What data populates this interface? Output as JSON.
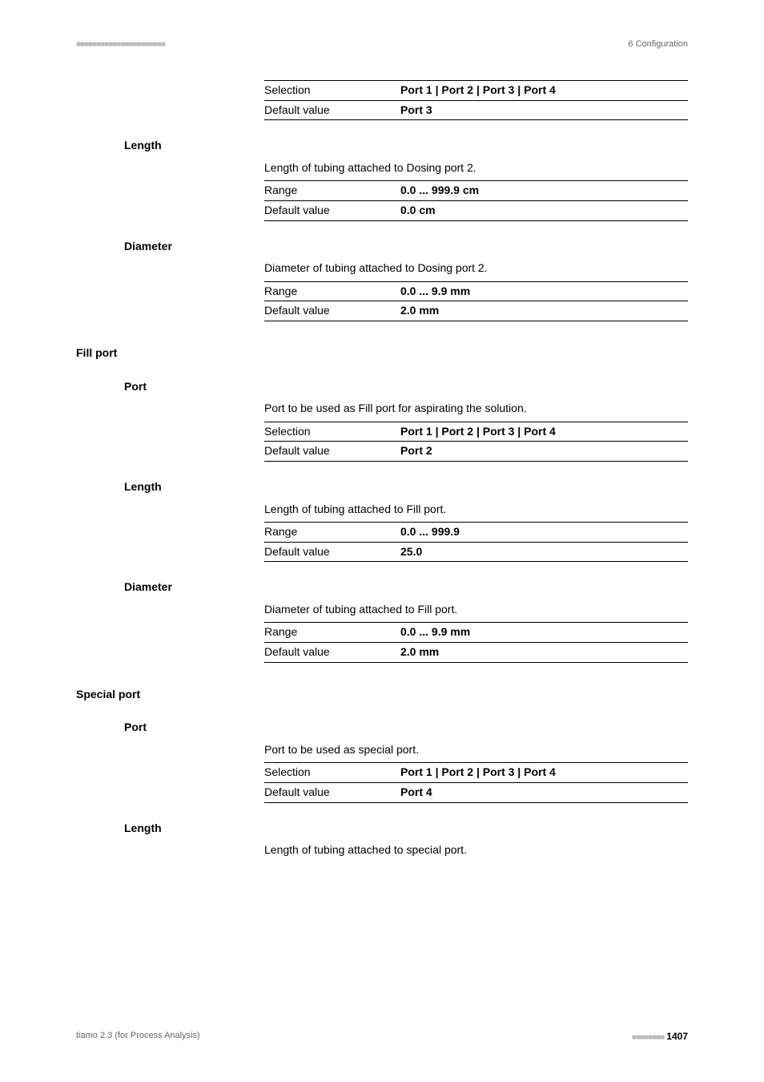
{
  "header": {
    "dots": "■■■■■■■■■■■■■■■■■■■■■■",
    "right": "6 Configuration"
  },
  "sections": [
    {
      "label": null,
      "indentDesc": null,
      "rows": [
        {
          "key": "Selection",
          "val": "Port 1 | Port 2 | Port 3 | Port 4"
        },
        {
          "key": "Default value",
          "val": "Port 3"
        }
      ]
    },
    {
      "label": "Length",
      "indentDesc": "Length of tubing attached to Dosing port 2.",
      "rows": [
        {
          "key": "Range",
          "val": "0.0 ... 999.9 cm"
        },
        {
          "key": "Default value",
          "val": "0.0 cm"
        }
      ]
    },
    {
      "label": "Diameter",
      "indentDesc": "Diameter of tubing attached to Dosing port 2.",
      "rows": [
        {
          "key": "Range",
          "val": "0.0 ... 9.9 mm"
        },
        {
          "key": "Default value",
          "val": "2.0 mm"
        }
      ]
    },
    {
      "head": "Fill port"
    },
    {
      "label": "Port",
      "indentDesc": "Port to be used as Fill port for aspirating the solution.",
      "rows": [
        {
          "key": "Selection",
          "val": "Port 1 | Port 2 | Port 3 | Port 4"
        },
        {
          "key": "Default value",
          "val": "Port 2"
        }
      ]
    },
    {
      "label": "Length",
      "indentDesc": "Length of tubing attached to Fill port.",
      "rows": [
        {
          "key": "Range",
          "val": "0.0 ... 999.9"
        },
        {
          "key": "Default value",
          "val": "25.0"
        }
      ]
    },
    {
      "label": "Diameter",
      "indentDesc": "Diameter of tubing attached to Fill port.",
      "rows": [
        {
          "key": "Range",
          "val": "0.0 ... 9.9 mm"
        },
        {
          "key": "Default value",
          "val": "2.0 mm"
        }
      ]
    },
    {
      "head": "Special port"
    },
    {
      "label": "Port",
      "indentDesc": "Port to be used as special port.",
      "rows": [
        {
          "key": "Selection",
          "val": "Port 1 | Port 2 | Port 3 | Port 4"
        },
        {
          "key": "Default value",
          "val": "Port 4"
        }
      ]
    },
    {
      "label": "Length",
      "indentDesc": "Length of tubing attached to special port.",
      "rows": []
    }
  ],
  "footer": {
    "left": "tiamo 2.3 (for Process Analysis)",
    "dots": "■■■■■■■■",
    "page": "1407"
  }
}
